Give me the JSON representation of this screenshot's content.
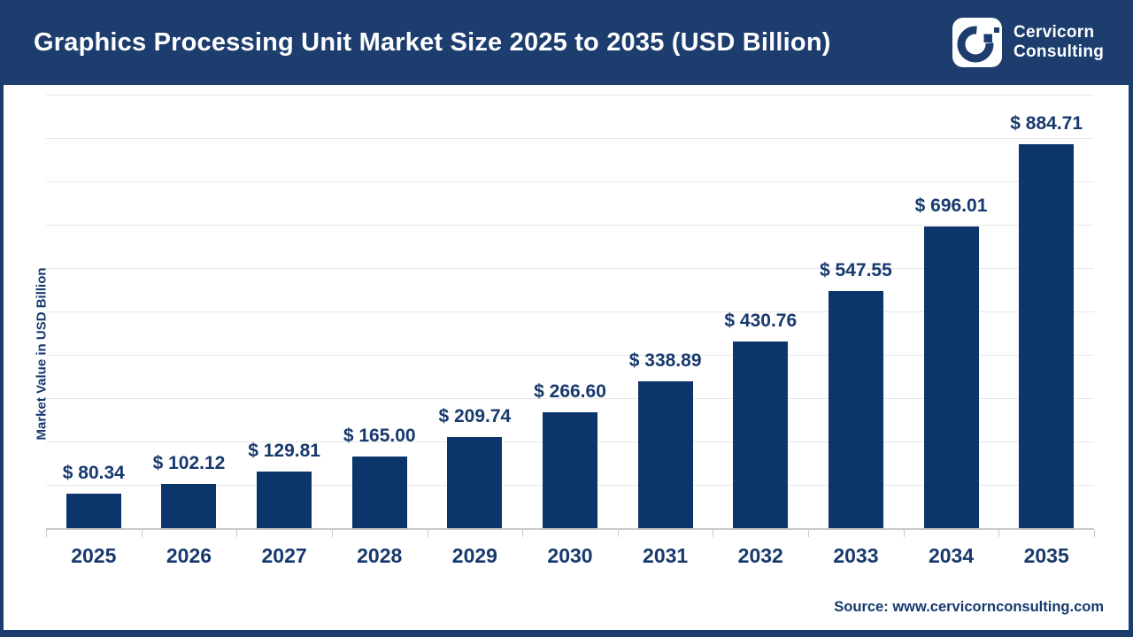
{
  "header": {
    "title": "Graphics Processing Unit Market Size 2025 to 2035 (USD Billion)",
    "brand_line1": "Cervicorn",
    "brand_line2": "Consulting"
  },
  "chart_data": {
    "type": "bar",
    "title": "Graphics Processing Unit Market Size 2025 to 2035 (USD Billion)",
    "categories": [
      "2025",
      "2026",
      "2027",
      "2028",
      "2029",
      "2030",
      "2031",
      "2032",
      "2033",
      "2034",
      "2035"
    ],
    "values": [
      80.34,
      102.12,
      129.81,
      165.0,
      209.74,
      266.6,
      338.89,
      430.76,
      547.55,
      696.01,
      884.71
    ],
    "data_labels": [
      "$ 80.34",
      "$ 102.12",
      "$ 129.81",
      "$ 165.00",
      "$ 209.74",
      "$ 266.60",
      "$ 338.89",
      "$ 430.76",
      "$ 547.55",
      "$ 696.01",
      "$ 884.71"
    ],
    "xlabel": "",
    "ylabel": "Market Value in USD Billion",
    "ylim": [
      0,
      1000
    ],
    "gridline_step": 100,
    "grid": true,
    "legend": false,
    "y_tick_labels_visible": false
  },
  "footer": {
    "source": "Source: www.cervicornconsulting.com"
  },
  "colors": {
    "header_navy": "#1c3d6e",
    "bar_navy": "#0c356b",
    "label_navy": "#17396d",
    "gridline": "#e7e7e7",
    "axis": "#c9c9c9",
    "background": "#ffffff"
  }
}
